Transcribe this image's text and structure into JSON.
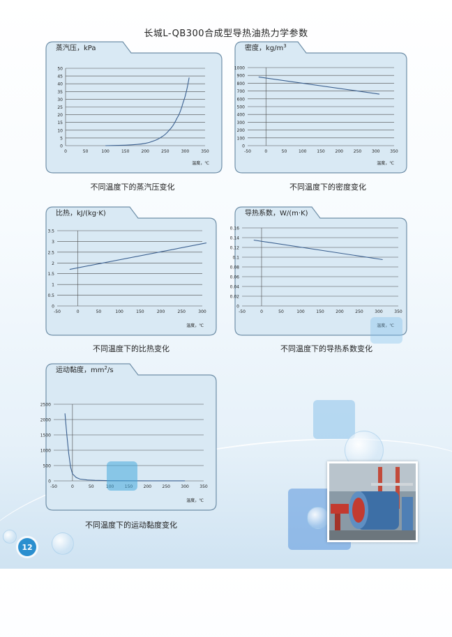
{
  "page": {
    "title": "长城L-QB300合成型导热油热力学参数",
    "page_number": "12"
  },
  "colors": {
    "panel_fill": "#d9e9f4",
    "panel_border": "#6f8fa8",
    "line": "#3a5f8f",
    "accent": "#2b8fcf"
  },
  "charts": [
    {
      "id": "vapor-pressure",
      "tab_label": "蒸汽压，kPa",
      "x_unit_label": "温度，℃",
      "caption": "不同温度下的蒸汽压变化"
    },
    {
      "id": "density",
      "tab_label": "密度，kg/m",
      "tab_superscript": "3",
      "x_unit_label": "温度，℃",
      "caption": "不同温度下的密度变化"
    },
    {
      "id": "specific-heat",
      "tab_label": "比热，kJ/(kg·K)",
      "x_unit_label": "温度，℃",
      "caption": "不同温度下的比热变化"
    },
    {
      "id": "thermal-conductivity",
      "tab_label": "导热系数，W/(m·K)",
      "x_unit_label": "温度，℃",
      "caption": "不同温度下的导热系数变化"
    },
    {
      "id": "kinematic-viscosity",
      "tab_label": "运动黏度，mm",
      "tab_superscript": "2",
      "tab_suffix": "/s",
      "x_unit_label": "温度，℃",
      "caption": "不同温度下的运动黏度变化"
    }
  ],
  "chart_data": [
    {
      "type": "line",
      "title": "蒸汽压，kPa",
      "xlabel": "温度，℃",
      "ylabel": "蒸汽压，kPa",
      "xlim": [
        0,
        350
      ],
      "ylim": [
        0,
        50
      ],
      "x_ticks": [
        0,
        50,
        100,
        150,
        200,
        250,
        300,
        350
      ],
      "y_ticks": [
        0,
        5,
        10,
        15,
        20,
        25,
        30,
        35,
        40,
        45,
        50
      ],
      "grid": true,
      "x": [
        100,
        150,
        180,
        200,
        220,
        240,
        260,
        280,
        295,
        310
      ],
      "y": [
        0,
        0.3,
        0.8,
        1.5,
        3,
        5.5,
        10,
        18,
        28,
        44
      ]
    },
    {
      "type": "line",
      "title": "密度，kg/m3",
      "xlabel": "温度，℃",
      "ylabel": "密度，kg/m3",
      "xlim": [
        -50,
        350
      ],
      "ylim": [
        0,
        1000
      ],
      "x_ticks": [
        -50,
        0,
        50,
        100,
        150,
        200,
        250,
        300,
        350
      ],
      "y_ticks": [
        0,
        100,
        200,
        300,
        400,
        500,
        600,
        700,
        800,
        900,
        1000
      ],
      "grid": true,
      "x": [
        -20,
        310
      ],
      "y": [
        880,
        660
      ]
    },
    {
      "type": "line",
      "title": "比热，kJ/(kg·K)",
      "xlabel": "温度，℃",
      "ylabel": "比热，kJ/(kg·K)",
      "xlim": [
        -50,
        300
      ],
      "ylim": [
        0,
        3.5
      ],
      "x_ticks": [
        -50,
        0,
        50,
        100,
        150,
        200,
        250,
        300
      ],
      "y_ticks": [
        0,
        0.5,
        1,
        1.5,
        2,
        2.5,
        3,
        3.5
      ],
      "grid": true,
      "x": [
        -20,
        310
      ],
      "y": [
        1.7,
        2.93
      ]
    },
    {
      "type": "line",
      "title": "导热系数，W/(m·K)",
      "xlabel": "温度，℃",
      "ylabel": "导热系数，W/(m·K)",
      "xlim": [
        -50,
        350
      ],
      "ylim": [
        0,
        0.16
      ],
      "x_ticks": [
        -50,
        0,
        50,
        100,
        150,
        200,
        250,
        300,
        350
      ],
      "y_ticks": [
        0,
        0.02,
        0.04,
        0.06,
        0.08,
        0.1,
        0.12,
        0.14,
        0.16
      ],
      "grid": true,
      "x": [
        -20,
        310
      ],
      "y": [
        0.135,
        0.095
      ]
    },
    {
      "type": "line",
      "title": "运动黏度，mm2/s",
      "xlabel": "温度，℃",
      "ylabel": "运动黏度，mm2/s",
      "xlim": [
        -50,
        350
      ],
      "ylim": [
        0,
        2500
      ],
      "x_ticks": [
        -50,
        0,
        50,
        100,
        150,
        200,
        250,
        300,
        350
      ],
      "y_ticks": [
        0,
        500,
        1000,
        1500,
        2000,
        2500
      ],
      "grid": true,
      "x": [
        -20,
        -15,
        -10,
        -5,
        0,
        10,
        20,
        40,
        60,
        100,
        150,
        200,
        300
      ],
      "y": [
        2200,
        1500,
        900,
        450,
        230,
        110,
        60,
        30,
        18,
        8,
        4,
        2,
        1
      ]
    }
  ]
}
